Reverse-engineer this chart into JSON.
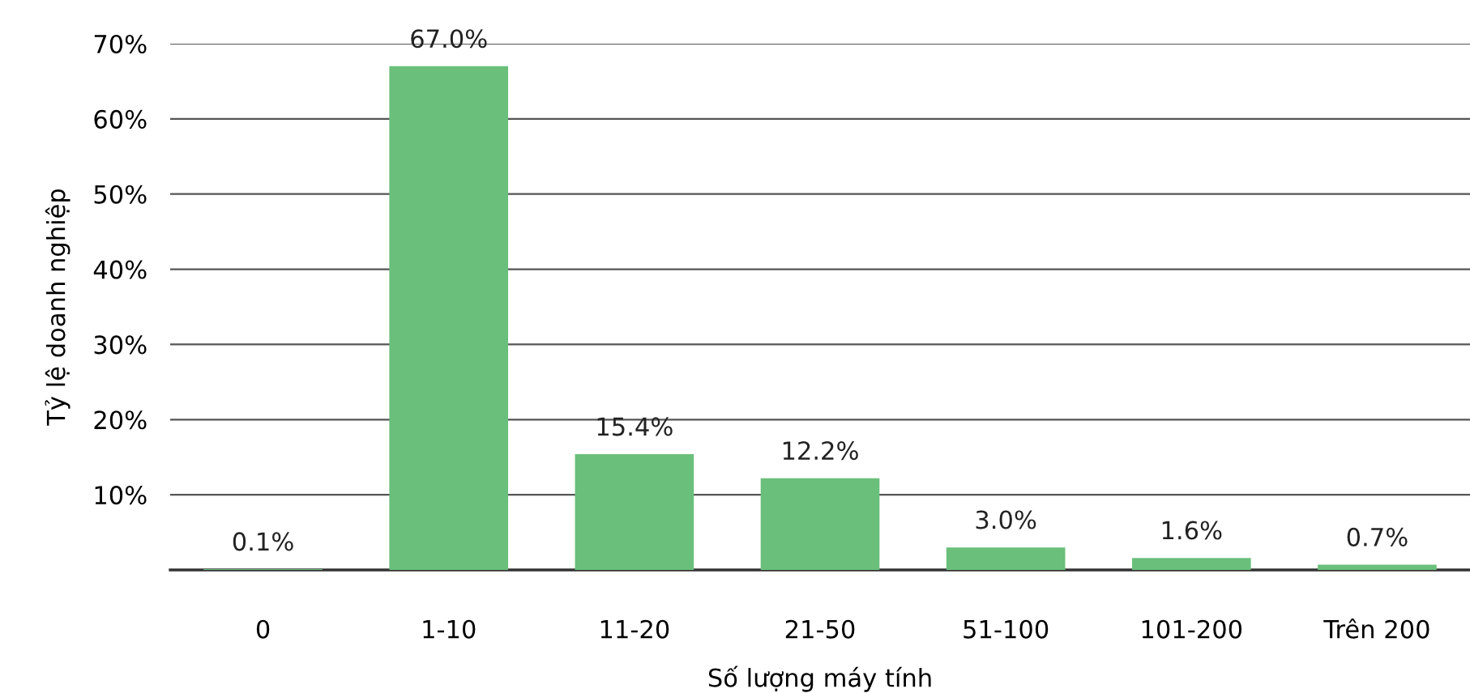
{
  "chart_data": {
    "type": "bar",
    "xlabel": "Số lượng máy tính",
    "ylabel": "Tỷ lệ doanh nghiệp",
    "categories": [
      "0",
      "1-10",
      "11-20",
      "21-50",
      "51-100",
      "101-200",
      "Trên 200"
    ],
    "values": [
      0.1,
      67.0,
      15.4,
      12.2,
      3.0,
      1.6,
      0.7
    ],
    "value_labels": [
      "0.1%",
      "67.0%",
      "15.4%",
      "12.2%",
      "3.0%",
      "1.6%",
      "0.7%"
    ],
    "color": "#6abf7b",
    "ylim": [
      0,
      70
    ],
    "yticks": [
      {
        "value": 0,
        "label": null
      },
      {
        "value": 10,
        "label": "10%"
      },
      {
        "value": 20,
        "label": "20%"
      },
      {
        "value": 30,
        "label": "30%"
      },
      {
        "value": 40,
        "label": "40%"
      },
      {
        "value": 50,
        "label": "50%"
      },
      {
        "value": 60,
        "label": "60%"
      },
      {
        "value": 70,
        "label": "70%"
      }
    ],
    "grid": "y",
    "legend": false
  }
}
